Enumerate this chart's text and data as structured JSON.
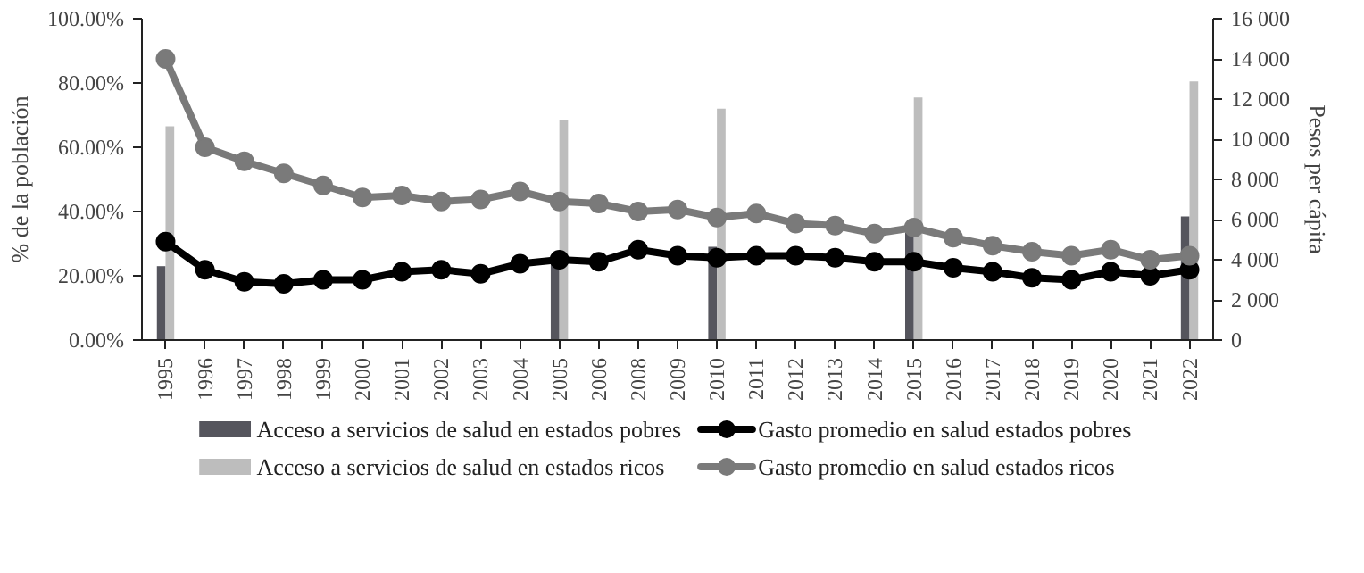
{
  "chart_data": {
    "type": "bar",
    "ylabel": "% de la población",
    "y2label": "Pesos per cápita",
    "categories": [
      "1995",
      "1996",
      "1997",
      "1998",
      "1999",
      "2000",
      "2001",
      "2002",
      "2003",
      "2004",
      "2005",
      "2006",
      "2008",
      "2009",
      "2010",
      "2011",
      "2012",
      "2013",
      "2014",
      "2015",
      "2016",
      "2017",
      "2018",
      "2019",
      "2020",
      "2021",
      "2022"
    ],
    "series": [
      {
        "name": "Acceso a servicios de salud en estados pobres",
        "color": "#55555d",
        "values": [
          23,
          null,
          null,
          null,
          null,
          null,
          null,
          null,
          null,
          null,
          24.5,
          null,
          null,
          null,
          29,
          null,
          null,
          null,
          null,
          33.5,
          null,
          null,
          null,
          null,
          null,
          null,
          38.5
        ]
      },
      {
        "type": "line",
        "axis": "y2",
        "name": "Gasto promedio en salud estados pobres",
        "color": "#000000",
        "values": [
          4900,
          3500,
          2900,
          2800,
          3000,
          3000,
          3400,
          3500,
          3300,
          3800,
          4000,
          3900,
          4500,
          4200,
          4100,
          4200,
          4200,
          4100,
          3900,
          3900,
          3600,
          3400,
          3100,
          3000,
          3400,
          3200,
          3500
        ]
      },
      {
        "name": "Acceso a servicios de salud en estados ricos",
        "color": "#bdbdbd",
        "values": [
          66.5,
          null,
          null,
          null,
          null,
          null,
          null,
          null,
          null,
          null,
          68.5,
          null,
          null,
          null,
          72,
          null,
          null,
          null,
          null,
          75.5,
          null,
          null,
          null,
          null,
          null,
          null,
          80.5
        ]
      },
      {
        "type": "line",
        "axis": "y2",
        "name": "Gasto promedio en salud estados ricos",
        "color": "#7a7a7a",
        "values": [
          14000,
          9600,
          8900,
          8300,
          7700,
          7100,
          7200,
          6900,
          7000,
          7400,
          6900,
          6800,
          6400,
          6500,
          6100,
          6300,
          5800,
          5700,
          5300,
          5600,
          5100,
          4700,
          4400,
          4200,
          4500,
          4000,
          4200
        ]
      }
    ],
    "ylim": [
      0,
      100
    ],
    "yticks": [
      {
        "value": 0,
        "label": "0.00%"
      },
      {
        "value": 20,
        "label": "20.00%"
      },
      {
        "value": 40,
        "label": "40.00%"
      },
      {
        "value": 60,
        "label": "60.00%"
      },
      {
        "value": 80,
        "label": "80.00%"
      },
      {
        "value": 100,
        "label": "100.00%"
      }
    ],
    "y2lim": [
      0,
      16000
    ],
    "y2ticks": [
      0,
      {
        "value": 2000,
        "label": "2 000"
      },
      {
        "value": 4000,
        "label": "4 000"
      },
      {
        "value": 6000,
        "label": "6 000"
      },
      {
        "value": 8000,
        "label": "8 000"
      },
      {
        "value": 10000,
        "label": "10 000"
      },
      {
        "value": 12000,
        "label": "12 000"
      },
      {
        "value": 14000,
        "label": "14 000"
      },
      {
        "value": 16000,
        "label": "16 000"
      }
    ],
    "marker": "circle",
    "grid": false,
    "legend": "bottom"
  }
}
